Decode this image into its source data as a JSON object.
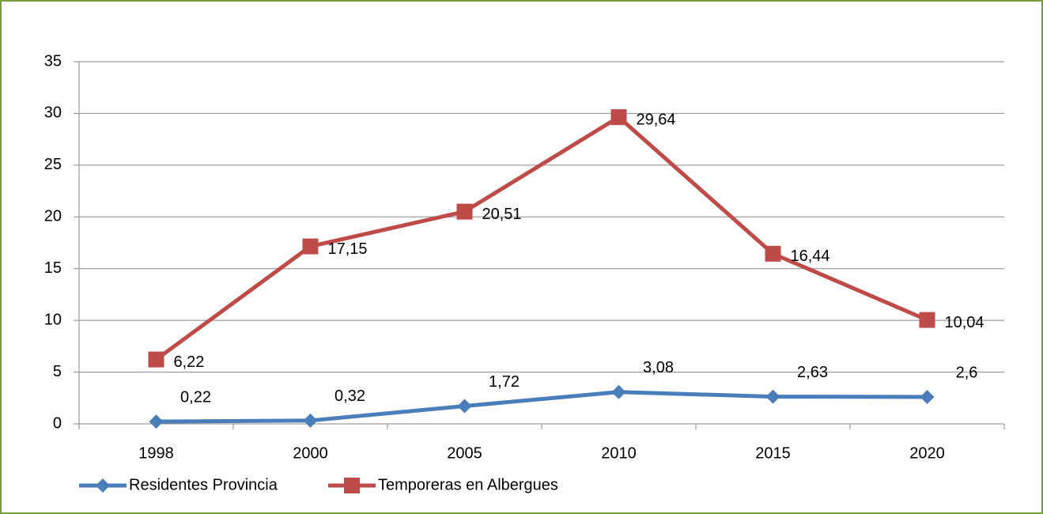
{
  "chart_data": {
    "type": "line",
    "categories": [
      "1998",
      "2000",
      "2005",
      "2010",
      "2015",
      "2020"
    ],
    "series": [
      {
        "name": "Residentes Provincia",
        "color": "#4a7ebb",
        "marker": "diamond",
        "values": [
          0.22,
          0.32,
          1.72,
          3.08,
          2.63,
          2.6
        ],
        "value_labels": [
          "0,22",
          "0,32",
          "1,72",
          "3,08",
          "2,63",
          "2,6"
        ]
      },
      {
        "name": "Temporeras en Albergues",
        "color": "#be4b48",
        "marker": "square",
        "values": [
          6.22,
          17.15,
          20.51,
          29.64,
          16.44,
          10.04
        ],
        "value_labels": [
          "6,22",
          "17,15",
          "20,51",
          "29,64",
          "16,44",
          "10,04"
        ]
      }
    ],
    "ylim": [
      0,
      35
    ],
    "yticks": [
      0,
      5,
      10,
      15,
      20,
      25,
      30,
      35
    ],
    "grid": true,
    "legend": "bottom-left"
  }
}
